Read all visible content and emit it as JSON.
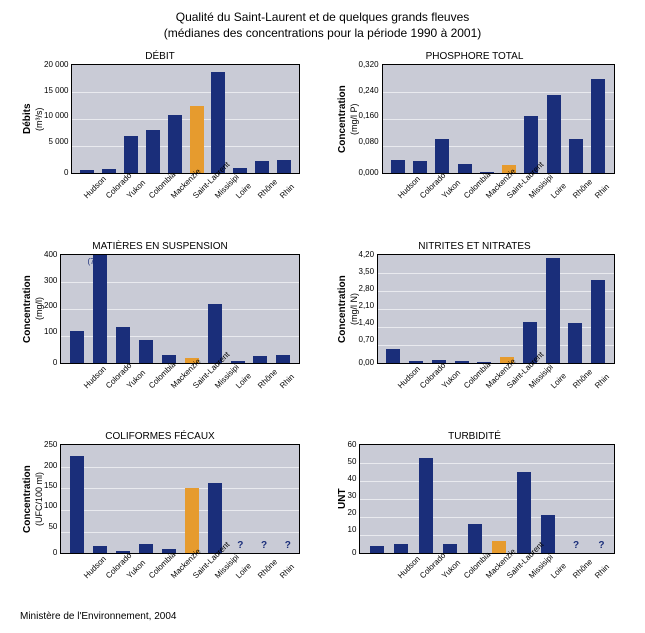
{
  "title_line1": "Qualité du Saint-Laurent et de quelques grands fleuves",
  "title_line2": "(médianes des concentrations pour la période 1990 à 2001)",
  "source": "Ministère de l'Environnement, 2004",
  "categories": [
    "Hudson",
    "Colorado",
    "Yukon",
    "Colombia",
    "Mackenzie",
    "Saint-Laurent",
    "Missisipi",
    "Loire",
    "Rhône",
    "Rhin"
  ],
  "highlight_index": 5,
  "colors": {
    "bar": "#1a2e7a",
    "highlight": "#e69b2e",
    "plot_bg": "#c9cbd6",
    "grid": "#ffffff"
  },
  "panels": [
    {
      "title": "DÉBIT",
      "ylabel": "Débits",
      "yunit": "(m³/s)",
      "ymax": 20000,
      "ytick_step": 5000,
      "yticks": [
        "20 000",
        "15 000",
        "10 000",
        "5 000",
        "0"
      ],
      "values": [
        600,
        800,
        6800,
        8000,
        10800,
        12500,
        18800,
        1000,
        2200,
        2400
      ]
    },
    {
      "title": "PHOSPHORE TOTAL",
      "ylabel": "Concentration",
      "yunit": "(mg/l P)",
      "ymax": 0.32,
      "ytick_step": 0.08,
      "yticks": [
        "0,320",
        "0,240",
        "0,160",
        "0,080",
        "0,000"
      ],
      "values": [
        0.04,
        0.036,
        0.1,
        0.028,
        0.005,
        0.025,
        0.17,
        0.233,
        0.1,
        0.28
      ]
    },
    {
      "title": "MATIÈRES EN SUSPENSION",
      "ylabel": "Concentration",
      "yunit": "(mg/l)",
      "ymax": 400,
      "ytick_step": 100,
      "yticks": [
        "400",
        "300",
        "200",
        "100",
        "0"
      ],
      "values": [
        120,
        724,
        135,
        85,
        30,
        18,
        220,
        8,
        25,
        32
      ],
      "overflow_label": {
        "index": 1,
        "text": "(724)"
      }
    },
    {
      "title": "NITRITES ET NITRATES",
      "ylabel": "Concentration",
      "yunit": "(mg/l N)",
      "ymax": 4.2,
      "ytick_step": 0.7,
      "yticks": [
        "4,20",
        "3,50",
        "2,80",
        "2,10",
        "1,40",
        "0,70",
        "0,00"
      ],
      "values": [
        0.55,
        0.1,
        0.14,
        0.1,
        0.05,
        0.25,
        1.6,
        4.1,
        1.55,
        3.25
      ]
    },
    {
      "title": "COLIFORMES FÉCAUX",
      "ylabel": "Concentration",
      "yunit": "(UFC/100 ml)",
      "ymax": 250,
      "ytick_step": 50,
      "yticks": [
        "250",
        "200",
        "150",
        "100",
        "50",
        "0"
      ],
      "values": [
        225,
        16,
        5,
        22,
        10,
        150,
        163,
        null,
        null,
        null
      ],
      "missing_marker": "?"
    },
    {
      "title": "TURBIDITÉ",
      "ylabel": "UNT",
      "yunit": "",
      "ymax": 60,
      "ytick_step": 10,
      "yticks": [
        "60",
        "50",
        "40",
        "30",
        "20",
        "10",
        "0"
      ],
      "values": [
        4,
        5,
        53,
        5,
        16,
        7,
        45,
        21,
        null,
        null
      ],
      "missing_marker": "?"
    }
  ]
}
